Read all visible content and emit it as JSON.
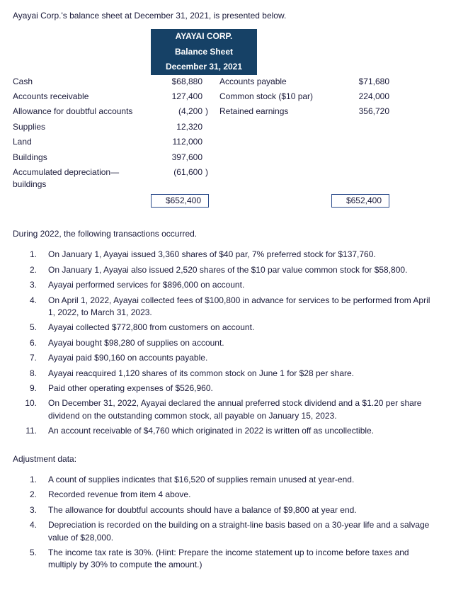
{
  "intro": "Ayayai Corp.'s balance sheet at December 31, 2021, is presented below.",
  "header": {
    "l1": "AYAYAI CORP.",
    "l2": "Balance Sheet",
    "l3": "December 31, 2021"
  },
  "left_rows": [
    {
      "label": "Cash",
      "amount": "$68,880",
      "paren": ""
    },
    {
      "label": "Accounts receivable",
      "amount": "127,400",
      "paren": ""
    },
    {
      "label": "Allowance for doubtful accounts",
      "amount": "(4,200",
      "paren": ")"
    },
    {
      "label": "Supplies",
      "amount": "12,320",
      "paren": ""
    },
    {
      "label": "Land",
      "amount": "112,000",
      "paren": ""
    },
    {
      "label": "Buildings",
      "amount": "397,600",
      "paren": ""
    },
    {
      "label": "Accumulated depreciation—buildings",
      "amount": "(61,600",
      "paren": ")"
    }
  ],
  "left_total": "$652,400",
  "right_rows": [
    {
      "label": "Accounts payable",
      "amount": "$71,680"
    },
    {
      "label": "Common stock ($10 par)",
      "amount": "224,000"
    },
    {
      "label": "Retained earnings",
      "amount": "356,720"
    }
  ],
  "right_total": "$652,400",
  "during": "During 2022, the following transactions occurred.",
  "transactions": [
    "On January 1, Ayayai issued 3,360 shares of $40 par, 7% preferred stock for $137,760.",
    "On January 1, Ayayai also issued 2,520 shares of the $10 par value common stock for $58,800.",
    "Ayayai performed services for $896,000 on account.",
    "On April 1, 2022, Ayayai collected fees of $100,800 in advance for services to be performed from April 1, 2022, to March 31, 2023.",
    "Ayayai collected $772,800 from customers on account.",
    "Ayayai bought $98,280 of supplies on account.",
    "Ayayai paid $90,160 on accounts payable.",
    "Ayayai reacquired 1,120 shares of its common stock on June 1 for $28 per share.",
    "Paid other operating expenses of $526,960.",
    "On December 31, 2022, Ayayai declared the annual preferred stock dividend and a $1.20 per share dividend on the outstanding common stock, all payable on January 15, 2023.",
    "An account receivable of $4,760 which originated in 2022 is written off as uncollectible."
  ],
  "adjust_head": "Adjustment data:",
  "adjustments": [
    "A count of supplies indicates that $16,520 of supplies remain unused at year-end.",
    "Recorded revenue from item 4 above.",
    "The allowance for doubtful accounts should have a balance of $9,800 at year end.",
    "Depreciation is recorded on the building on a straight-line basis based on a 30-year life and a salvage value of $28,000.",
    "The income tax rate is 30%. (Hint: Prepare the income statement up to income before taxes and multiply by 30% to compute the amount.)"
  ]
}
